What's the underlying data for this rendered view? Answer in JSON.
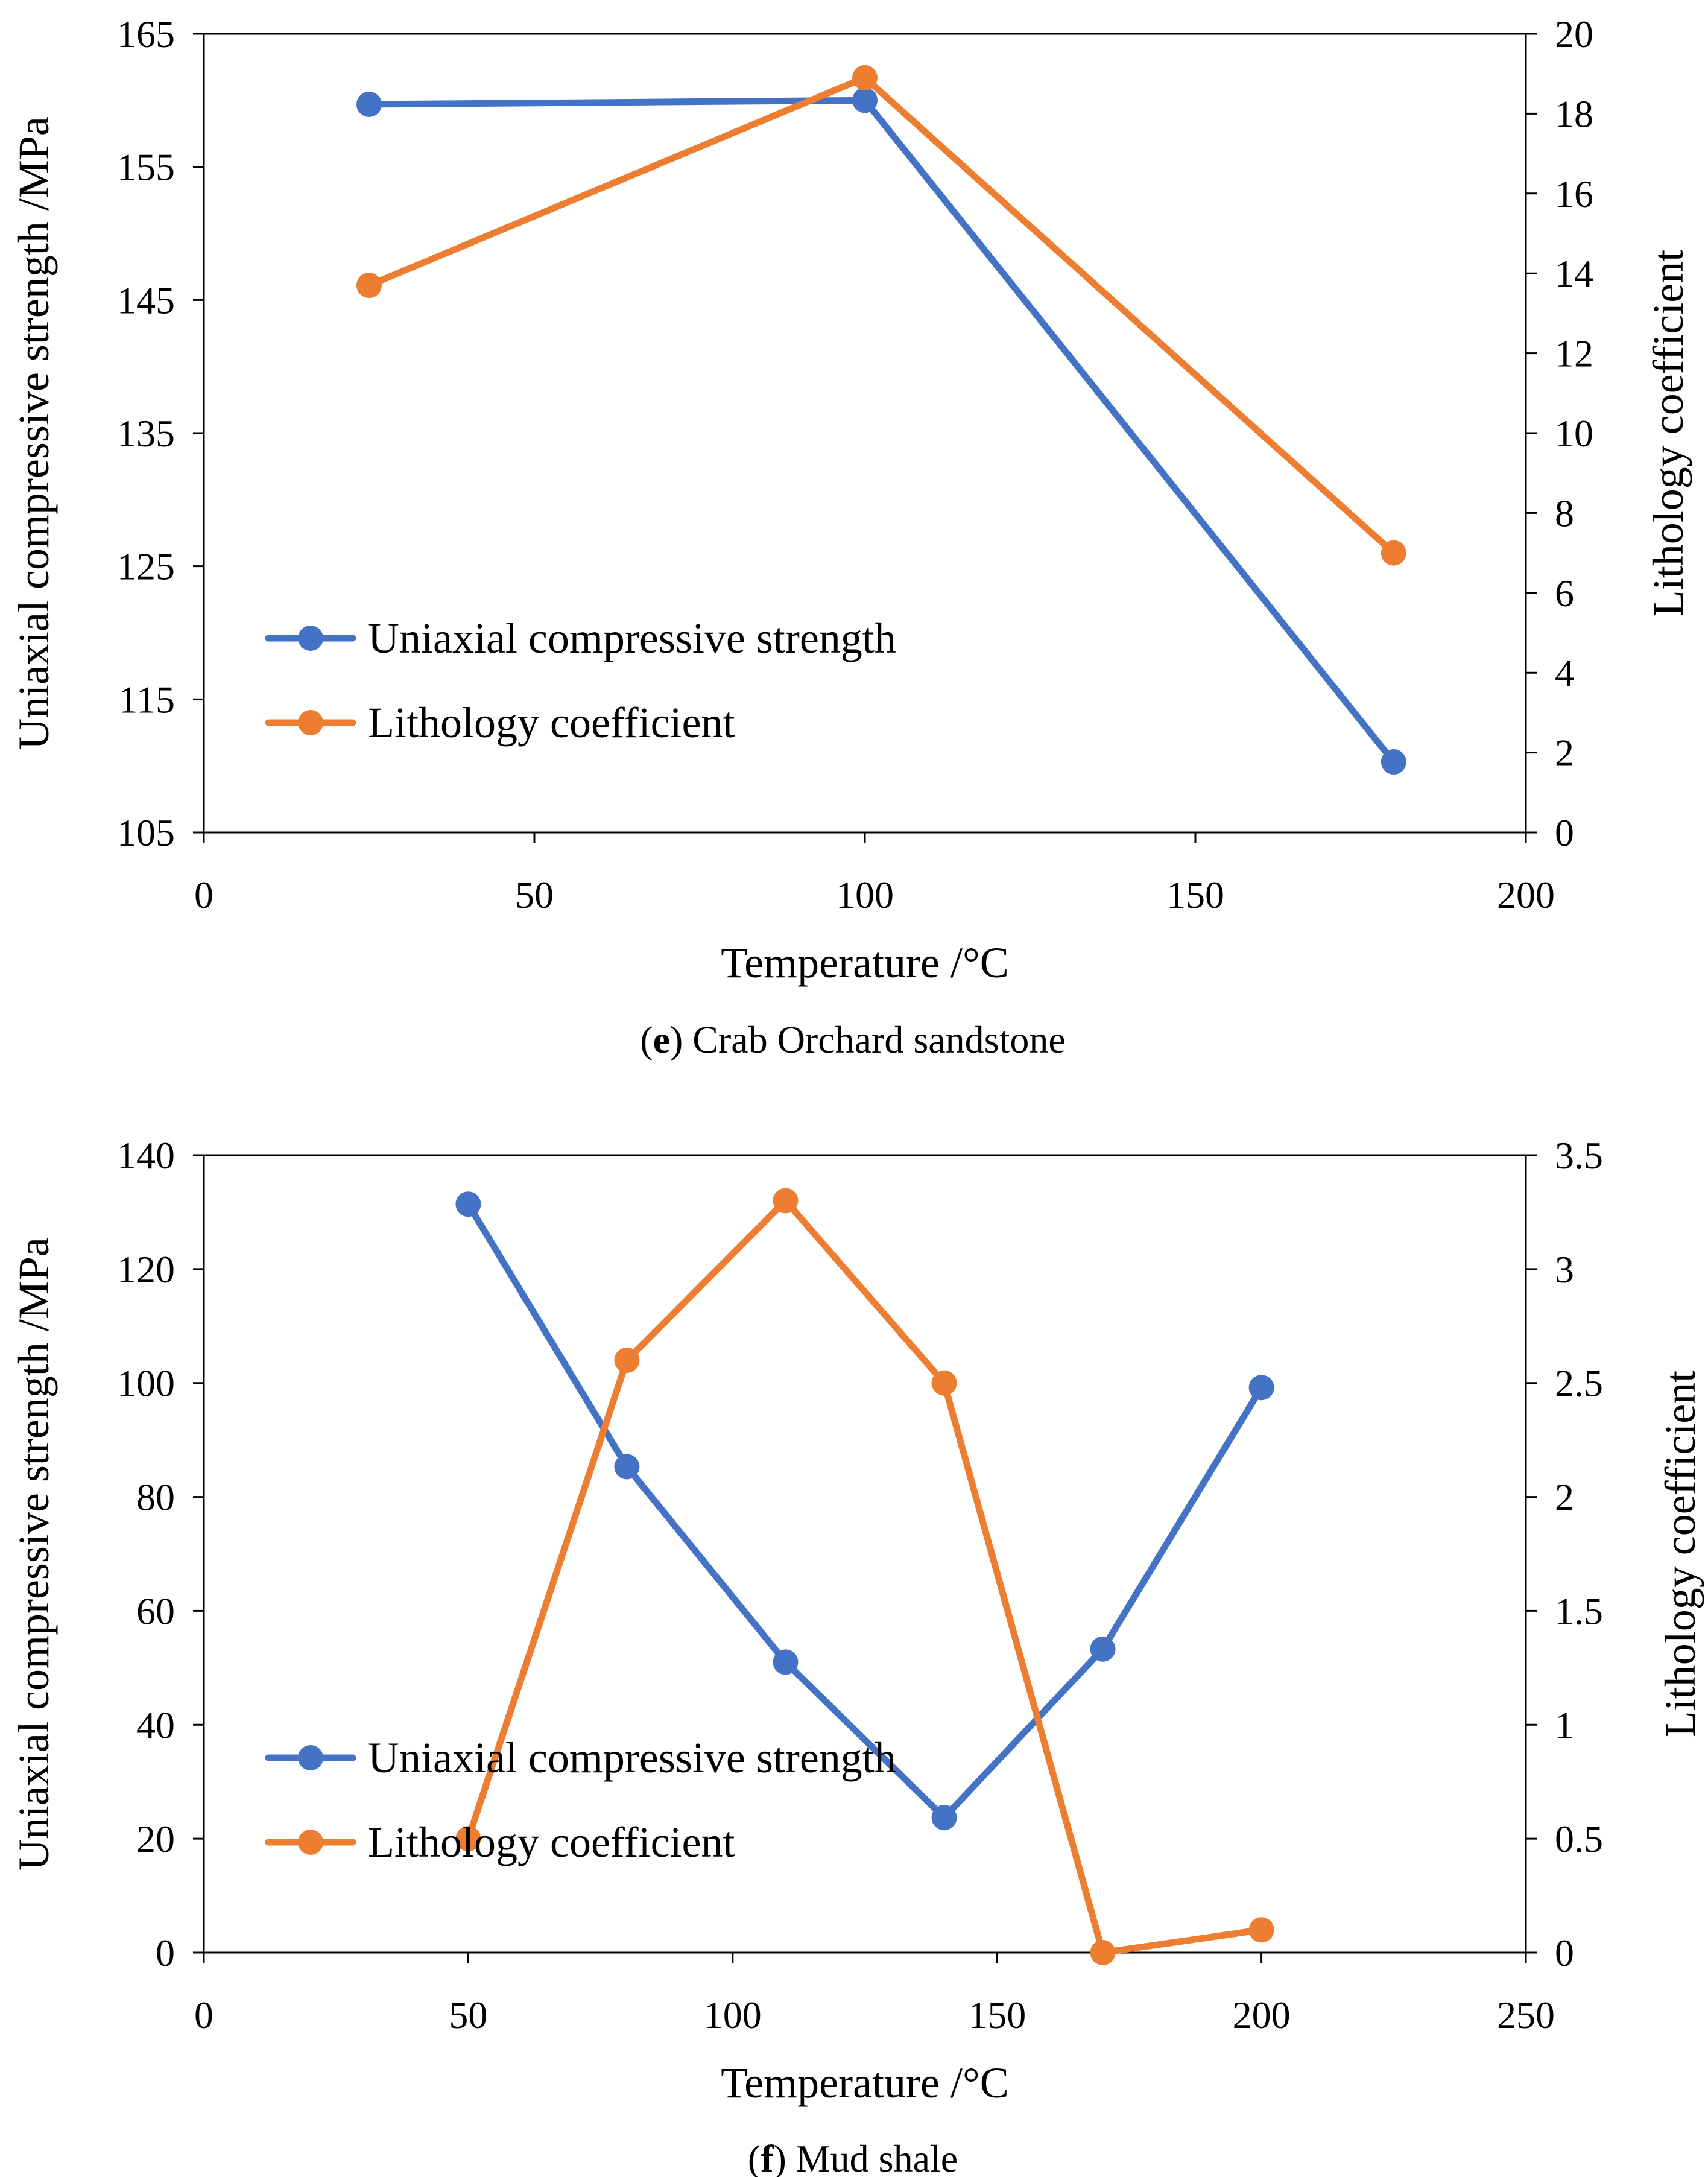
{
  "chart_data": [
    {
      "type": "line",
      "caption_letter": "e",
      "caption_text": "Crab Orchard sandstone",
      "xlabel": "Temperature /°C",
      "ylabel": "Uniaxial compressive strength /MPa",
      "y2label": "Lithology coefficient",
      "xlim": [
        0,
        200
      ],
      "xticks": [
        0,
        50,
        100,
        150,
        200
      ],
      "ylim": [
        105,
        165
      ],
      "yticks": [
        105,
        115,
        125,
        135,
        145,
        155,
        165
      ],
      "y2lim": [
        0,
        20
      ],
      "y2ticks": [
        0,
        2,
        4,
        6,
        8,
        10,
        12,
        14,
        16,
        18,
        20
      ],
      "legend_position": "lower-left",
      "grid": false,
      "series": [
        {
          "name": "Uniaxial compressive strength",
          "axis": "left",
          "color": "#4472C4",
          "x": [
            25,
            100,
            180
          ],
          "y": [
            159.7,
            160.0,
            110.3
          ]
        },
        {
          "name": "Lithology coefficient",
          "axis": "right",
          "color": "#ED7D31",
          "x": [
            25,
            100,
            180
          ],
          "y": [
            13.7,
            18.9,
            7.0
          ]
        }
      ]
    },
    {
      "type": "line",
      "caption_letter": "f",
      "caption_text": "Mud shale",
      "xlabel": "Temperature /°C",
      "ylabel": "Uniaxial compressive strength /MPa",
      "y2label": "Lithology coefficient",
      "xlim": [
        0,
        250
      ],
      "xticks": [
        0,
        50,
        100,
        150,
        200,
        250
      ],
      "ylim": [
        0,
        140
      ],
      "yticks": [
        0,
        20,
        40,
        60,
        80,
        100,
        120,
        140
      ],
      "y2lim": [
        0,
        3.5
      ],
      "y2ticks": [
        0,
        0.5,
        1,
        1.5,
        2,
        2.5,
        3,
        3.5
      ],
      "legend_position": "lower-left",
      "grid": false,
      "series": [
        {
          "name": "Uniaxial compressive strength",
          "axis": "left",
          "color": "#4472C4",
          "x": [
            50,
            80,
            110,
            140,
            170,
            200
          ],
          "y": [
            131.4,
            85.3,
            51.0,
            23.7,
            53.3,
            99.2
          ]
        },
        {
          "name": "Lithology coefficient",
          "axis": "right",
          "color": "#ED7D31",
          "x": [
            50,
            80,
            110,
            140,
            170,
            200
          ],
          "y": [
            0.5,
            2.6,
            3.3,
            2.5,
            0.0,
            0.1
          ]
        }
      ]
    }
  ]
}
